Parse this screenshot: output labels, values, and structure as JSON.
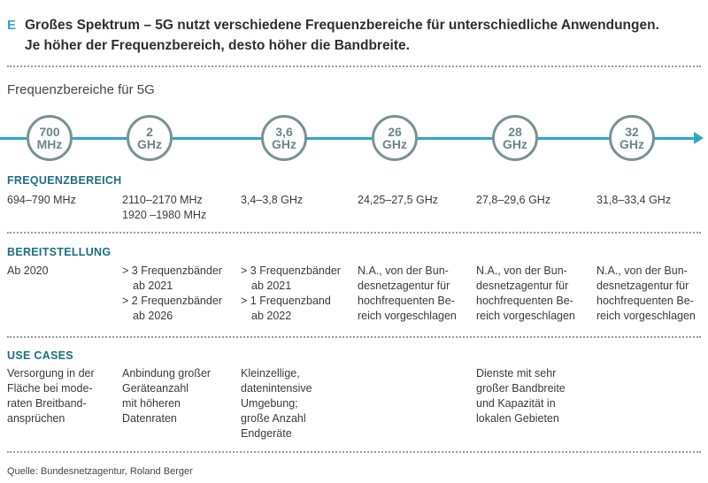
{
  "header": {
    "letter": "E",
    "line1": "Großes Spektrum – 5G nutzt verschiedene Frequenzbereiche für unterschiedliche Anwendungen.",
    "line2": "Je höher der Frequenzbereich, desto höher die Bandbreite."
  },
  "subtitle": "Frequenzbereiche für 5G",
  "bands": [
    {
      "value": "700",
      "unit": "MHz"
    },
    {
      "value": "2",
      "unit": "GHz"
    },
    {
      "value": "3,6",
      "unit": "GHz"
    },
    {
      "value": "26",
      "unit": "GHz"
    },
    {
      "value": "28",
      "unit": "GHz"
    },
    {
      "value": "32",
      "unit": "GHz"
    }
  ],
  "sections": {
    "frequenzbereich": {
      "title": "FREQUENZBEREICH",
      "cells": [
        [
          "694–790 MHz"
        ],
        [
          "2110–2170 MHz",
          "1920 –1980 MHz"
        ],
        [
          "3,4–3,8 GHz"
        ],
        [
          "24,25–27,5 GHz"
        ],
        [
          "27,8–29,6 GHz"
        ],
        [
          "31,8–33,4 GHz"
        ]
      ]
    },
    "bereitstellung": {
      "title": "BEREITSTELLUNG",
      "col0": "Ab 2020",
      "col1": {
        "b1_l1": "> 3 Frequenzbänder",
        "b1_l2": "ab 2021",
        "b2_l1": "> 2 Frequenzbänder",
        "b2_l2": "ab 2026"
      },
      "col2": {
        "b1_l1": "> 3 Frequenzbänder",
        "b1_l2": "ab 2021",
        "b2_l1": "> 1 Frequenzband",
        "b2_l2": "ab 2022"
      },
      "na_lines": [
        "N.A., von der Bun-",
        "desnetzagentur für",
        "hochfrequenten Be-",
        "reich vorgeschlagen"
      ]
    },
    "usecases": {
      "title": "USE CASES",
      "cells": [
        [
          "Versorgung in der",
          "Fläche bei mode-",
          "raten Breitband-",
          "ansprüchen"
        ],
        [
          "Anbindung großer",
          "Geräteanzahl",
          "mit höheren",
          "Datenraten"
        ],
        [
          "Kleinzellige,",
          "datenintensive",
          "Umgebung;",
          "große Anzahl",
          "Endgeräte"
        ],
        [],
        [
          "Dienste mit sehr",
          "großer Bandbreite",
          "und Kapazität in",
          "lokalen Gebieten"
        ],
        []
      ]
    }
  },
  "source": "Quelle: Bundesnetzagentur, Roland Berger",
  "colors": {
    "accent": "#2aa8c9",
    "section_title": "#1c6f86",
    "circle": "#7a9193"
  }
}
